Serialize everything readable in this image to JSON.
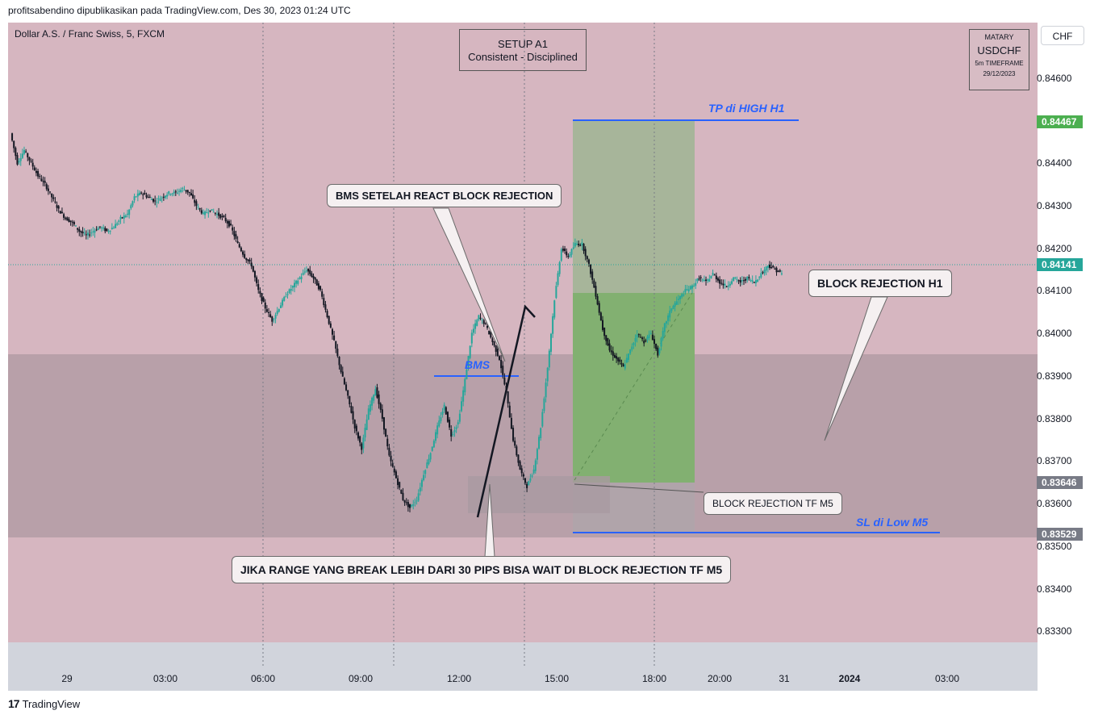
{
  "header": {
    "published": "profitsabendino dipublikasikan pada TradingView.com, Des 30, 2023 01:24 UTC"
  },
  "symbol": {
    "title": "Dollar A.S. / Franc Swiss, 5, FXCM"
  },
  "currency_button": "CHF",
  "setup_box": {
    "line1": "SETUP A1",
    "line2": "Consistent - Disciplined"
  },
  "watermark": {
    "author": "MATARY",
    "symbol": "USDCHF",
    "timeframe": "5m TIMEFRAME",
    "date": "29/12/2023"
  },
  "annotations": {
    "tp": "TP di HIGH H1",
    "sl": "SL di Low M5",
    "bms": "BMS",
    "bms_callout": "BMS SETELAH REACT BLOCK REJECTION",
    "block_h1": "BLOCK REJECTION H1",
    "block_m5": "BLOCK REJECTION TF M5",
    "range_callout": "JIKA RANGE YANG BREAK LEBIH DARI 30 PIPS BISA WAIT DI BLOCK REJECTION TF M5"
  },
  "price_tags": {
    "tp": "0.84467",
    "current": "0.84141",
    "entry": "0.83646",
    "sl": "0.83529"
  },
  "colors": {
    "background_zone": "#d6b6c0",
    "demand_zone": "#b8a0a9",
    "profit": "#7fb26f",
    "up_candle": "#26a69a",
    "down_candle": "#131722",
    "tp_line": "#2962ff",
    "current_tag": "#26a69a",
    "tp_tag": "#4caf50",
    "gray_tag": "#787b86"
  },
  "footer": {
    "brand": "TradingView"
  },
  "chart_data": {
    "type": "candlestick",
    "y_axis": {
      "ticks": [
        "0.84600",
        "0.84500",
        "0.84400",
        "0.84300",
        "0.84200",
        "0.84100",
        "0.84000",
        "0.83900",
        "0.83800",
        "0.83700",
        "0.83600",
        "0.83500",
        "0.83400",
        "0.83300"
      ],
      "range": [
        0.83274,
        0.8473
      ]
    },
    "x_axis": {
      "ticks": [
        "29",
        "03:00",
        "06:00",
        "09:00",
        "12:00",
        "15:00",
        "18:00",
        "20:00",
        "31",
        "2024",
        "03:00"
      ]
    },
    "levels": {
      "tp": 0.84467,
      "current": 0.84141,
      "entry": 0.83646,
      "sl": 0.83529
    },
    "series": [
      {
        "name": "price",
        "points": [
          0.8447,
          0.844,
          0.8443,
          0.844,
          0.8437,
          0.8435,
          0.8432,
          0.8429,
          0.8427,
          0.8426,
          0.8424,
          0.8423,
          0.8424,
          0.8425,
          0.8424,
          0.8425,
          0.8427,
          0.8428,
          0.8432,
          0.8433,
          0.8432,
          0.8431,
          0.8432,
          0.8433,
          0.8433,
          0.8434,
          0.8433,
          0.843,
          0.8428,
          0.8429,
          0.8428,
          0.8427,
          0.8425,
          0.8421,
          0.8418,
          0.8416,
          0.841,
          0.8406,
          0.8403,
          0.8406,
          0.8409,
          0.8411,
          0.8413,
          0.8415,
          0.8413,
          0.841,
          0.8404,
          0.8398,
          0.8391,
          0.8385,
          0.8378,
          0.8373,
          0.8382,
          0.8387,
          0.838,
          0.8371,
          0.8366,
          0.8361,
          0.8359,
          0.8361,
          0.8367,
          0.8372,
          0.8378,
          0.8383,
          0.8376,
          0.8379,
          0.8389,
          0.84,
          0.8404,
          0.8402,
          0.8398,
          0.8394,
          0.8386,
          0.8375,
          0.8368,
          0.8364,
          0.8368,
          0.8378,
          0.8392,
          0.8408,
          0.842,
          0.8418,
          0.8421,
          0.8421,
          0.8416,
          0.8409,
          0.8401,
          0.8396,
          0.8394,
          0.8392,
          0.8396,
          0.84,
          0.8398,
          0.84,
          0.8395,
          0.8402,
          0.8406,
          0.8408,
          0.841,
          0.8411,
          0.8413,
          0.8412,
          0.8414,
          0.8412,
          0.8411,
          0.8413,
          0.8412,
          0.8413,
          0.8412,
          0.8414,
          0.8416,
          0.8415,
          0.8414
        ]
      }
    ]
  }
}
